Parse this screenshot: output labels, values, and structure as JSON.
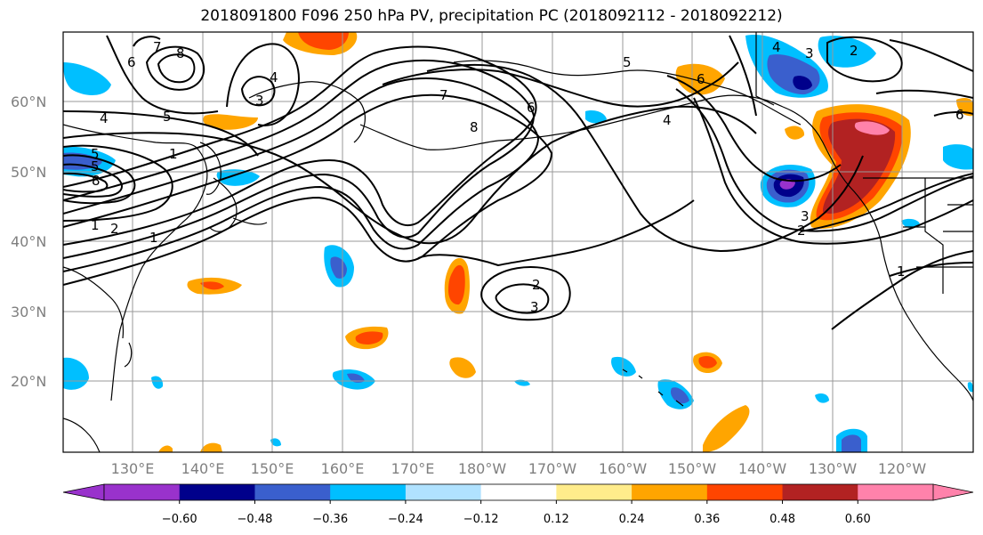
{
  "title": "2018091800 F096 250 hPa PV, precipitation PC (2018092112 - 2018092212)",
  "lat_labels": [
    "60°N",
    "50°N",
    "40°N",
    "30°N",
    "20°N"
  ],
  "lon_labels": [
    "130°E",
    "140°E",
    "150°E",
    "160°E",
    "170°E",
    "180°W",
    "170°W",
    "160°W",
    "150°W",
    "140°W",
    "130°W",
    "120°W"
  ],
  "colorbar": {
    "colors": [
      "#9932cc",
      "#00008b",
      "#3a5fcd",
      "#00bfff",
      "#b0e2ff",
      "#ffffff",
      "#ffec8b",
      "#ffa500",
      "#ff4500",
      "#b22222",
      "#ff82ab"
    ],
    "tick_labels": [
      "−0.60",
      "−0.48",
      "−0.36",
      "−0.24",
      "−0.12",
      "0.12",
      "0.24",
      "0.36",
      "0.48",
      "0.60"
    ]
  },
  "contour_labels": [
    {
      "text": "8"
    },
    {
      "text": "7"
    },
    {
      "text": "6"
    },
    {
      "text": "4"
    },
    {
      "text": "5"
    },
    {
      "text": "1"
    },
    {
      "text": "5"
    },
    {
      "text": "4"
    },
    {
      "text": "3"
    },
    {
      "text": "5"
    },
    {
      "text": "8"
    },
    {
      "text": "1"
    },
    {
      "text": "2"
    },
    {
      "text": "1"
    },
    {
      "text": "7"
    },
    {
      "text": "8"
    },
    {
      "text": "6"
    },
    {
      "text": "5"
    },
    {
      "text": "6"
    },
    {
      "text": "4"
    },
    {
      "text": "2"
    },
    {
      "text": "6"
    },
    {
      "text": "3"
    },
    {
      "text": "2"
    },
    {
      "text": "2"
    },
    {
      "text": "3"
    },
    {
      "text": "1"
    },
    {
      "text": "3"
    },
    {
      "text": "4"
    }
  ],
  "colors": {
    "grid": "#999999",
    "contour": "#000000",
    "coast": "#000000",
    "frame": "#000000"
  }
}
